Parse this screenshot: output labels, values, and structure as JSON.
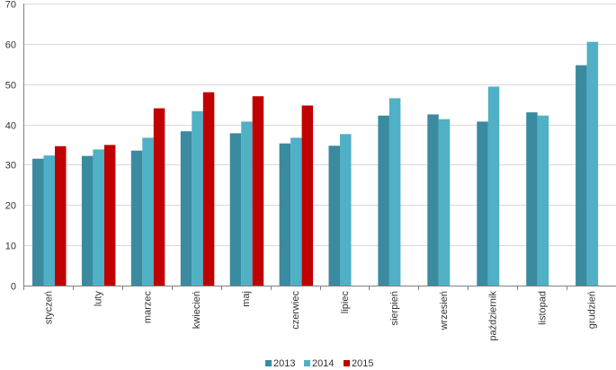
{
  "chart_data": {
    "type": "bar",
    "categories": [
      "styczeń",
      "luty",
      "marzec",
      "kwiecień",
      "maj",
      "czerwiec",
      "lipiec",
      "sierpień",
      "wrzesień",
      "październik",
      "listopad",
      "grudzień"
    ],
    "series": [
      {
        "name": "2013",
        "color": "#3a8aa0",
        "values": [
          31.5,
          32.2,
          33.5,
          38.3,
          37.8,
          35.3,
          34.7,
          42.2,
          42.5,
          40.7,
          43.0,
          54.7
        ]
      },
      {
        "name": "2014",
        "color": "#4fb0c6",
        "values": [
          32.3,
          33.8,
          36.7,
          43.3,
          40.7,
          36.7,
          37.6,
          46.5,
          41.3,
          49.4,
          42.2,
          60.5
        ]
      },
      {
        "name": "2015",
        "color": "#c00000",
        "values": [
          34.6,
          34.9,
          44.0,
          48.0,
          47.0,
          44.7,
          null,
          null,
          null,
          null,
          null,
          null
        ]
      }
    ],
    "y_ticks": [
      "0",
      "10",
      "20",
      "30",
      "40",
      "50",
      "60",
      "70"
    ],
    "ylim": [
      0,
      70
    ],
    "grid": true,
    "legend_position": "bottom-center",
    "title": "",
    "xlabel": "",
    "ylabel": ""
  }
}
